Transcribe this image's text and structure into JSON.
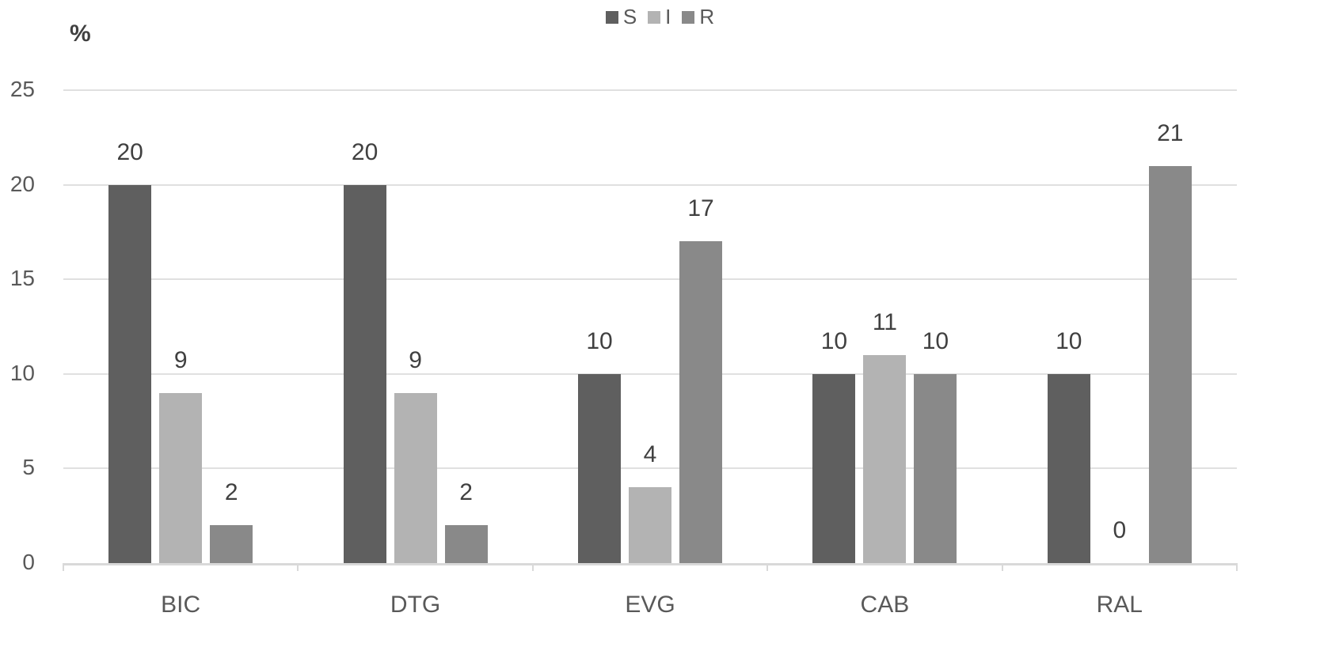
{
  "chart_data": {
    "type": "bar",
    "title": "",
    "xlabel": "",
    "ylabel": "%",
    "ylim": [
      0,
      25
    ],
    "yticks": [
      0,
      5,
      10,
      15,
      20,
      25
    ],
    "grid": true,
    "legend_position": "top",
    "categories": [
      "BIC",
      "DTG",
      "EVG",
      "CAB",
      "RAL"
    ],
    "series": [
      {
        "name": "S",
        "color": "#5f5f5f",
        "values": [
          20,
          20,
          10,
          10,
          10
        ]
      },
      {
        "name": "I",
        "color": "#b3b3b3",
        "values": [
          9,
          9,
          4,
          11,
          0
        ]
      },
      {
        "name": "R",
        "color": "#898989",
        "values": [
          2,
          2,
          17,
          10,
          21
        ]
      }
    ]
  }
}
